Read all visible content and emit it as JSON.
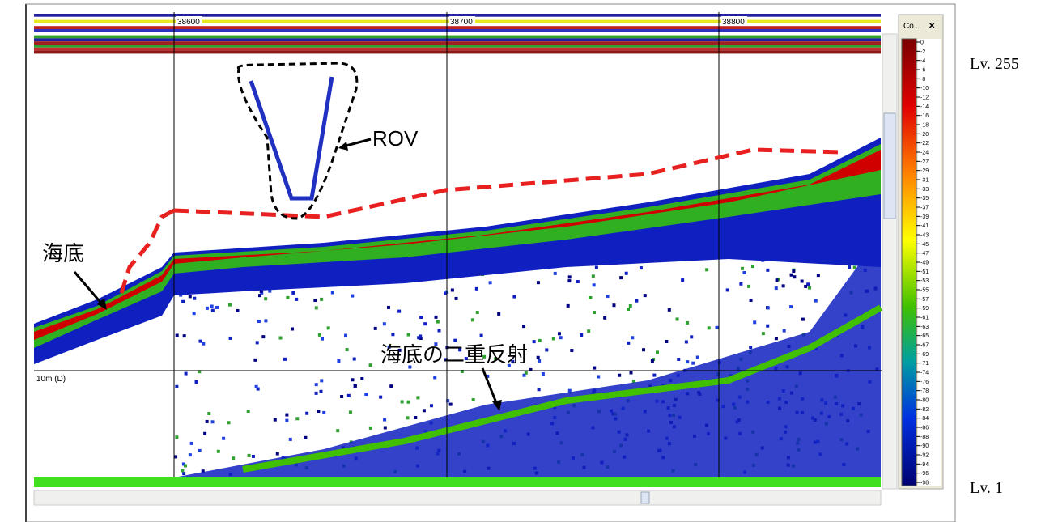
{
  "window": {
    "ping_labels": [
      "38600",
      "38700",
      "38800"
    ],
    "depth_label": "10m (D)",
    "colorbar_title": "Co...",
    "close_button": "✕",
    "colorbar_ticks": [
      "0",
      "-2",
      "-4",
      "-6",
      "-8",
      "-10",
      "-12",
      "-14",
      "-16",
      "-18",
      "-20",
      "-22",
      "-24",
      "-27",
      "-29",
      "-31",
      "-33",
      "-35",
      "-37",
      "-39",
      "-41",
      "-43",
      "-45",
      "-47",
      "-49",
      "-51",
      "-53",
      "-55",
      "-57",
      "-59",
      "-61",
      "-63",
      "-65",
      "-67",
      "-69",
      "-71",
      "-74",
      "-76",
      "-78",
      "-80",
      "-82",
      "-84",
      "-86",
      "-88",
      "-90",
      "-92",
      "-94",
      "-96",
      "-98"
    ]
  },
  "annotations": {
    "rov": "ROV",
    "seabed": "海底",
    "double_reflection": "海底の二重反射"
  },
  "levels": {
    "top": "Lv. 255",
    "bottom": "Lv. 1"
  }
}
